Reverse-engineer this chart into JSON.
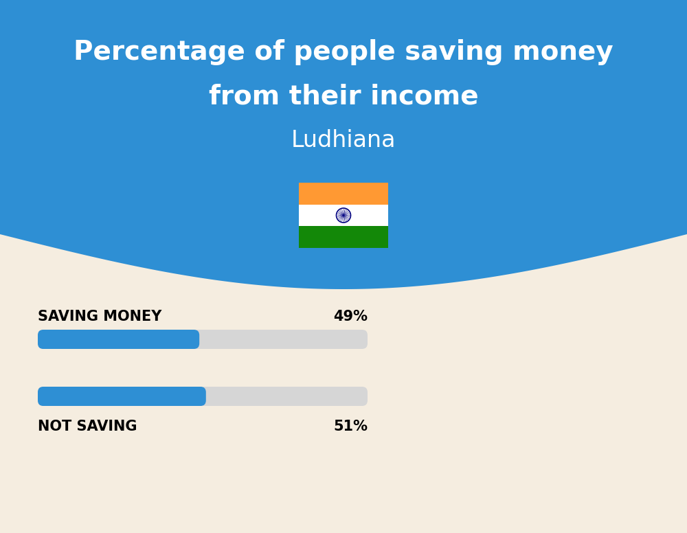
{
  "title_line1": "Percentage of people saving money",
  "title_line2": "from their income",
  "subtitle": "Ludhiana",
  "bg_top_color": "#2E8FD4",
  "bg_bottom_color": "#F5EDE0",
  "bar_bg_color": "#D6D6D6",
  "bar_fill_color": "#2E8FD4",
  "categories": [
    "SAVING MONEY",
    "NOT SAVING"
  ],
  "values": [
    49,
    51
  ],
  "bar_total": 100,
  "label_fontsize": 15,
  "value_fontsize": 15,
  "title_fontsize": 28,
  "subtitle_fontsize": 24,
  "title_color": "#FFFFFF",
  "subtitle_color": "#FFFFFF",
  "label_color": "#000000",
  "value_color": "#000000",
  "fig_width": 10,
  "fig_height": 7.76,
  "dpi": 100,
  "flag_orange": "#FF9933",
  "flag_white": "#FFFFFF",
  "flag_green": "#138808",
  "flag_chakra": "#000080"
}
